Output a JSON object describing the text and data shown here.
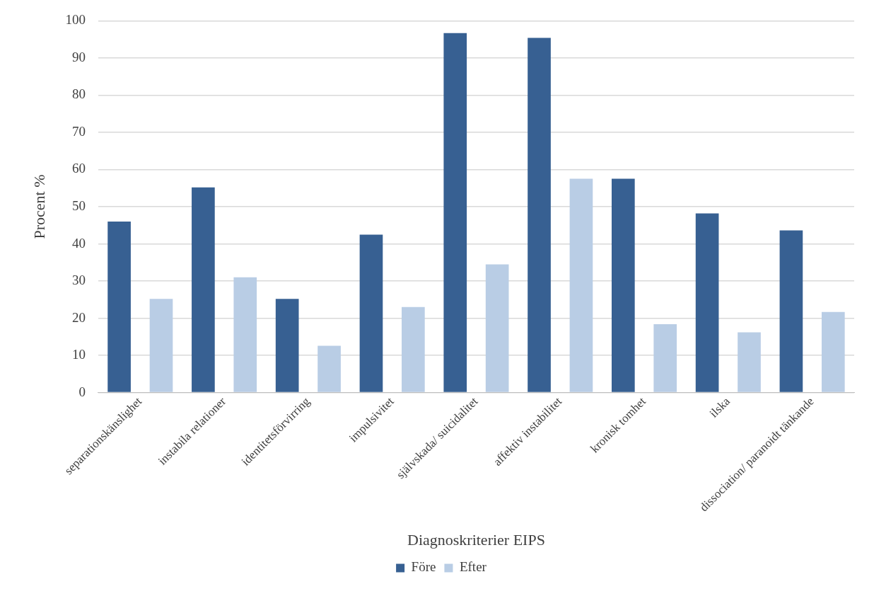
{
  "chart_data": {
    "type": "bar",
    "xlabel": "Diagnoskriterier EIPS",
    "ylabel": "Procent %",
    "categories": [
      "separationskänslighet",
      "instabila relationer",
      "identitetsförvirring",
      "impulsivitet",
      "självskada/ suicidalitet",
      "affektiv instabilitet",
      "kronisk tomhet",
      "ilska",
      "dissociation/ paranoidt tänkande"
    ],
    "series": [
      {
        "name": "Före",
        "color": "#376092",
        "values": [
          46,
          55.2,
          25.2,
          42.5,
          96.7,
          95.4,
          57.5,
          48.2,
          43.6
        ]
      },
      {
        "name": "Efter",
        "color": "#b9cde5",
        "values": [
          25.2,
          31,
          12.6,
          23,
          34.5,
          57.5,
          18.4,
          16.2,
          21.7
        ]
      }
    ],
    "ylim": [
      0,
      100
    ],
    "yticks": [
      0,
      10,
      20,
      30,
      40,
      50,
      60,
      70,
      80,
      90,
      100
    ],
    "grid": "y",
    "legend": "bottom"
  }
}
